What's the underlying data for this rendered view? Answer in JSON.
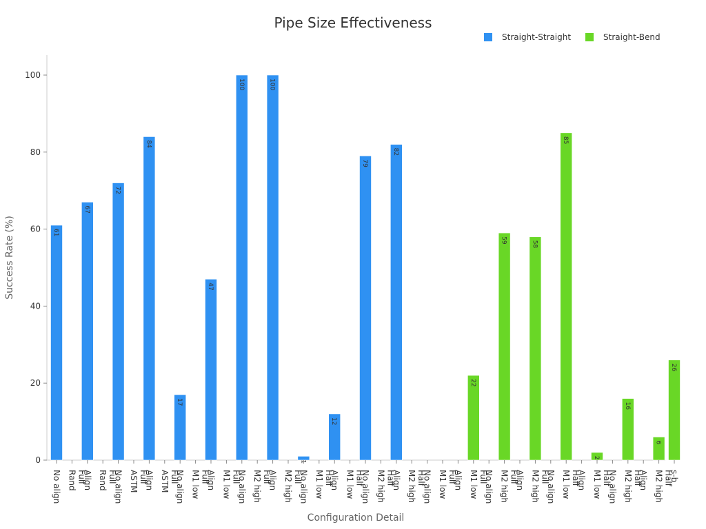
{
  "chart_data": {
    "type": "bar",
    "title": "Pipe Size Effectiveness",
    "xlabel": "Configuration Detail",
    "ylabel": "Success Rate (%)",
    "ylim": [
      0,
      105
    ],
    "yticks": [
      0,
      20,
      40,
      60,
      80,
      100
    ],
    "grid": false,
    "legend_position": "top-right",
    "categories": [
      "No align",
      "Rand Full",
      "Align",
      "Rand Full",
      "No align",
      "ASTM Full",
      "Align",
      "ASTM Full",
      "No align",
      "M1 low Full",
      "Align",
      "M1 low Full",
      "No align",
      "M2 high Full",
      "Align",
      "M2 high Full",
      "No align",
      "M1 low Half",
      "Align",
      "M1 low Half",
      "No align",
      "M2 high Half",
      "Align",
      "M2 high Half",
      "No align",
      "M1 low Full",
      "Align",
      "M1 low Full",
      "No align",
      "M2 high Full",
      "Align",
      "M2 high Full",
      "No align",
      "M1 low Half",
      "Align",
      "M1 low Half",
      "No align",
      "M2 high Half",
      "Align",
      "M2 high Half",
      "s-b"
    ],
    "series": [
      {
        "name": "Straight-Straight",
        "color": "#2f91f2",
        "values": [
          61,
          null,
          67,
          null,
          72,
          null,
          84,
          null,
          17,
          null,
          47,
          null,
          100,
          null,
          100,
          null,
          1,
          null,
          12,
          null,
          79,
          null,
          82,
          null,
          null,
          null,
          null,
          null,
          null,
          null,
          null,
          null,
          null,
          null,
          null,
          null,
          null,
          null,
          null,
          null,
          null
        ]
      },
      {
        "name": "Straight-Bend",
        "color": "#69d726",
        "values": [
          null,
          null,
          null,
          null,
          null,
          null,
          null,
          null,
          null,
          null,
          null,
          null,
          null,
          null,
          null,
          null,
          null,
          null,
          null,
          null,
          null,
          null,
          null,
          null,
          null,
          null,
          null,
          22,
          null,
          59,
          null,
          58,
          null,
          85,
          null,
          2,
          null,
          16,
          null,
          6,
          26
        ]
      }
    ]
  }
}
